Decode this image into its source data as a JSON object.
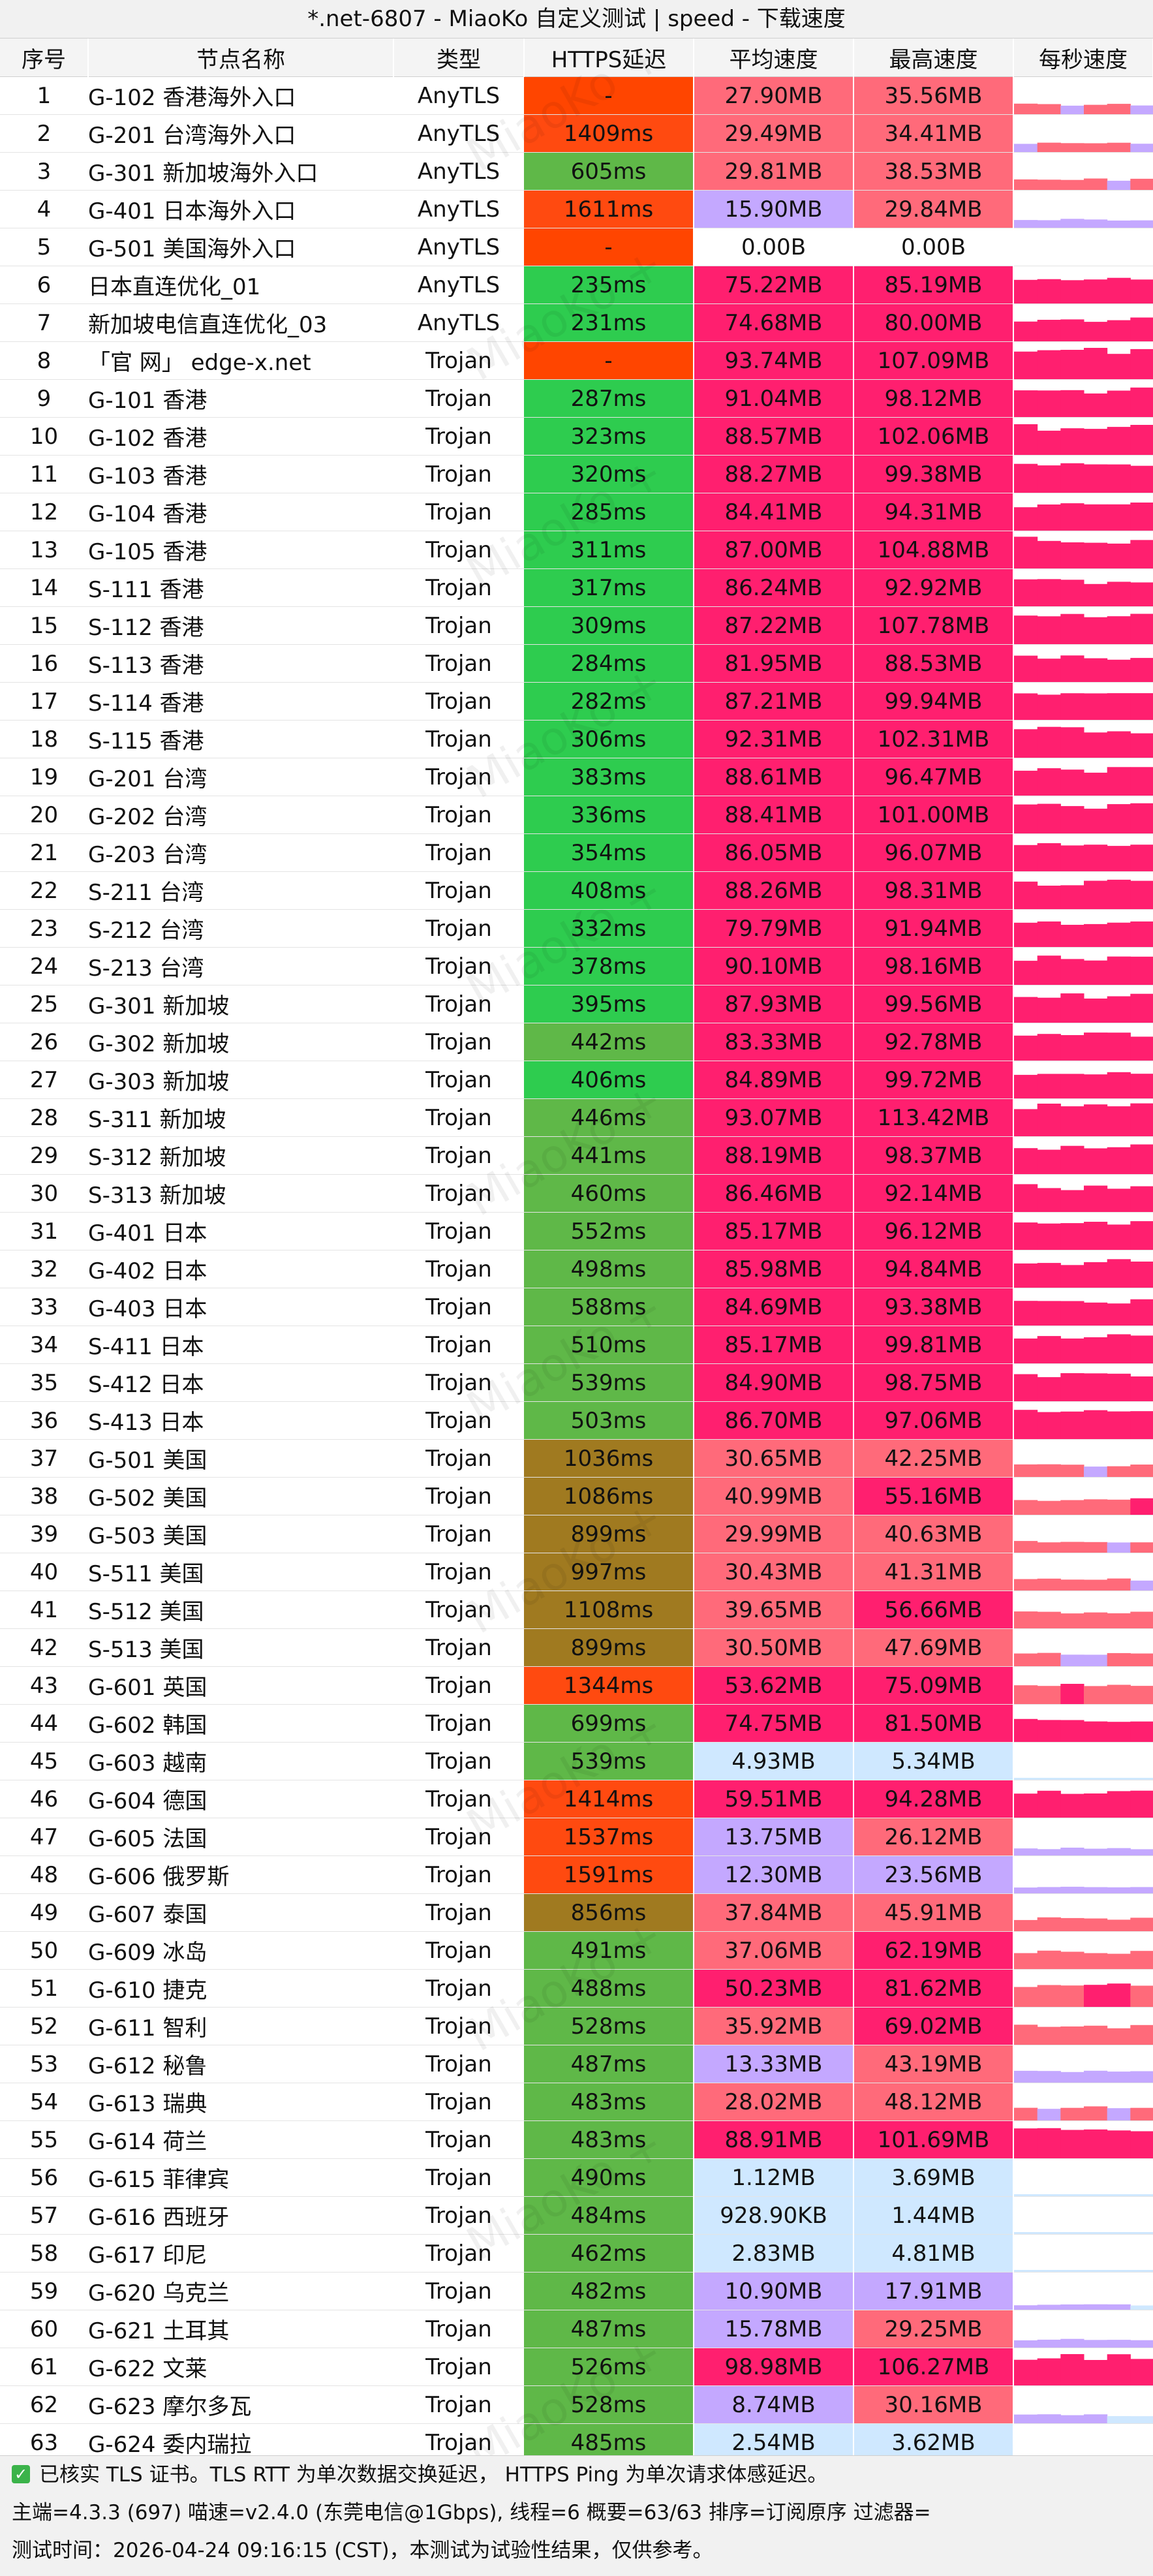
{
  "title": "*.net-6807 - MiaoKo 自定义测试 | speed - 下载速度",
  "watermark": "MiaoKo +",
  "columns": [
    "序号",
    "节点名称",
    "类型",
    "HTTPS延迟",
    "平均速度",
    "最高速度",
    "每秒速度"
  ],
  "rows": [
    {
      "i": "1",
      "name": "G-102 香港海外入口",
      "type": "AnyTLS",
      "lat": "-",
      "avg": "27.90MB",
      "max": "35.56MB"
    },
    {
      "i": "2",
      "name": "G-201 台湾海外入口",
      "type": "AnyTLS",
      "lat": "1409ms",
      "avg": "29.49MB",
      "max": "34.41MB"
    },
    {
      "i": "3",
      "name": "G-301 新加坡海外入口",
      "type": "AnyTLS",
      "lat": "605ms",
      "avg": "29.81MB",
      "max": "38.53MB"
    },
    {
      "i": "4",
      "name": "G-401 日本海外入口",
      "type": "AnyTLS",
      "lat": "1611ms",
      "avg": "15.90MB",
      "max": "29.84MB"
    },
    {
      "i": "5",
      "name": "G-501 美国海外入口",
      "type": "AnyTLS",
      "lat": "-",
      "avg": "0.00B",
      "max": "0.00B"
    },
    {
      "i": "6",
      "name": "日本直连优化_01",
      "type": "AnyTLS",
      "lat": "235ms",
      "avg": "75.22MB",
      "max": "85.19MB"
    },
    {
      "i": "7",
      "name": "新加坡电信直连优化_03",
      "type": "AnyTLS",
      "lat": "231ms",
      "avg": "74.68MB",
      "max": "80.00MB"
    },
    {
      "i": "8",
      "name": "「官 网」 edge-x.net",
      "type": "Trojan",
      "lat": "-",
      "avg": "93.74MB",
      "max": "107.09MB"
    },
    {
      "i": "9",
      "name": "G-101 香港",
      "type": "Trojan",
      "lat": "287ms",
      "avg": "91.04MB",
      "max": "98.12MB"
    },
    {
      "i": "10",
      "name": "G-102 香港",
      "type": "Trojan",
      "lat": "323ms",
      "avg": "88.57MB",
      "max": "102.06MB"
    },
    {
      "i": "11",
      "name": "G-103 香港",
      "type": "Trojan",
      "lat": "320ms",
      "avg": "88.27MB",
      "max": "99.38MB"
    },
    {
      "i": "12",
      "name": "G-104 香港",
      "type": "Trojan",
      "lat": "285ms",
      "avg": "84.41MB",
      "max": "94.31MB"
    },
    {
      "i": "13",
      "name": "G-105 香港",
      "type": "Trojan",
      "lat": "311ms",
      "avg": "87.00MB",
      "max": "104.88MB"
    },
    {
      "i": "14",
      "name": "S-111 香港",
      "type": "Trojan",
      "lat": "317ms",
      "avg": "86.24MB",
      "max": "92.92MB"
    },
    {
      "i": "15",
      "name": "S-112 香港",
      "type": "Trojan",
      "lat": "309ms",
      "avg": "87.22MB",
      "max": "107.78MB"
    },
    {
      "i": "16",
      "name": "S-113 香港",
      "type": "Trojan",
      "lat": "284ms",
      "avg": "81.95MB",
      "max": "88.53MB"
    },
    {
      "i": "17",
      "name": "S-114 香港",
      "type": "Trojan",
      "lat": "282ms",
      "avg": "87.21MB",
      "max": "99.94MB"
    },
    {
      "i": "18",
      "name": "S-115 香港",
      "type": "Trojan",
      "lat": "306ms",
      "avg": "92.31MB",
      "max": "102.31MB"
    },
    {
      "i": "19",
      "name": "G-201 台湾",
      "type": "Trojan",
      "lat": "383ms",
      "avg": "88.61MB",
      "max": "96.47MB"
    },
    {
      "i": "20",
      "name": "G-202 台湾",
      "type": "Trojan",
      "lat": "336ms",
      "avg": "88.41MB",
      "max": "101.00MB"
    },
    {
      "i": "21",
      "name": "G-203 台湾",
      "type": "Trojan",
      "lat": "354ms",
      "avg": "86.05MB",
      "max": "96.07MB"
    },
    {
      "i": "22",
      "name": "S-211 台湾",
      "type": "Trojan",
      "lat": "408ms",
      "avg": "88.26MB",
      "max": "98.31MB"
    },
    {
      "i": "23",
      "name": "S-212 台湾",
      "type": "Trojan",
      "lat": "332ms",
      "avg": "79.79MB",
      "max": "91.94MB"
    },
    {
      "i": "24",
      "name": "S-213 台湾",
      "type": "Trojan",
      "lat": "378ms",
      "avg": "90.10MB",
      "max": "98.16MB"
    },
    {
      "i": "25",
      "name": "G-301 新加坡",
      "type": "Trojan",
      "lat": "395ms",
      "avg": "87.93MB",
      "max": "99.56MB"
    },
    {
      "i": "26",
      "name": "G-302 新加坡",
      "type": "Trojan",
      "lat": "442ms",
      "avg": "83.33MB",
      "max": "92.78MB"
    },
    {
      "i": "27",
      "name": "G-303 新加坡",
      "type": "Trojan",
      "lat": "406ms",
      "avg": "84.89MB",
      "max": "99.72MB"
    },
    {
      "i": "28",
      "name": "S-311 新加坡",
      "type": "Trojan",
      "lat": "446ms",
      "avg": "93.07MB",
      "max": "113.42MB"
    },
    {
      "i": "29",
      "name": "S-312 新加坡",
      "type": "Trojan",
      "lat": "441ms",
      "avg": "88.19MB",
      "max": "98.37MB"
    },
    {
      "i": "30",
      "name": "S-313 新加坡",
      "type": "Trojan",
      "lat": "460ms",
      "avg": "86.46MB",
      "max": "92.14MB"
    },
    {
      "i": "31",
      "name": "G-401 日本",
      "type": "Trojan",
      "lat": "552ms",
      "avg": "85.17MB",
      "max": "96.12MB"
    },
    {
      "i": "32",
      "name": "G-402 日本",
      "type": "Trojan",
      "lat": "498ms",
      "avg": "85.98MB",
      "max": "94.84MB"
    },
    {
      "i": "33",
      "name": "G-403 日本",
      "type": "Trojan",
      "lat": "588ms",
      "avg": "84.69MB",
      "max": "93.38MB"
    },
    {
      "i": "34",
      "name": "S-411 日本",
      "type": "Trojan",
      "lat": "510ms",
      "avg": "85.17MB",
      "max": "99.81MB"
    },
    {
      "i": "35",
      "name": "S-412 日本",
      "type": "Trojan",
      "lat": "539ms",
      "avg": "84.90MB",
      "max": "98.75MB"
    },
    {
      "i": "36",
      "name": "S-413 日本",
      "type": "Trojan",
      "lat": "503ms",
      "avg": "86.70MB",
      "max": "97.06MB"
    },
    {
      "i": "37",
      "name": "G-501 美国",
      "type": "Trojan",
      "lat": "1036ms",
      "avg": "30.65MB",
      "max": "42.25MB"
    },
    {
      "i": "38",
      "name": "G-502 美国",
      "type": "Trojan",
      "lat": "1086ms",
      "avg": "40.99MB",
      "max": "55.16MB"
    },
    {
      "i": "39",
      "name": "G-503 美国",
      "type": "Trojan",
      "lat": "899ms",
      "avg": "29.99MB",
      "max": "40.63MB"
    },
    {
      "i": "40",
      "name": "S-511 美国",
      "type": "Trojan",
      "lat": "997ms",
      "avg": "30.43MB",
      "max": "41.31MB"
    },
    {
      "i": "41",
      "name": "S-512 美国",
      "type": "Trojan",
      "lat": "1108ms",
      "avg": "39.65MB",
      "max": "56.66MB"
    },
    {
      "i": "42",
      "name": "S-513 美国",
      "type": "Trojan",
      "lat": "899ms",
      "avg": "30.50MB",
      "max": "47.69MB"
    },
    {
      "i": "43",
      "name": "G-601 英国",
      "type": "Trojan",
      "lat": "1344ms",
      "avg": "53.62MB",
      "max": "75.09MB"
    },
    {
      "i": "44",
      "name": "G-602 韩国",
      "type": "Trojan",
      "lat": "699ms",
      "avg": "74.75MB",
      "max": "81.50MB"
    },
    {
      "i": "45",
      "name": "G-603 越南",
      "type": "Trojan",
      "lat": "539ms",
      "avg": "4.93MB",
      "max": "5.34MB"
    },
    {
      "i": "46",
      "name": "G-604 德国",
      "type": "Trojan",
      "lat": "1414ms",
      "avg": "59.51MB",
      "max": "94.28MB"
    },
    {
      "i": "47",
      "name": "G-605 法国",
      "type": "Trojan",
      "lat": "1537ms",
      "avg": "13.75MB",
      "max": "26.12MB"
    },
    {
      "i": "48",
      "name": "G-606 俄罗斯",
      "type": "Trojan",
      "lat": "1591ms",
      "avg": "12.30MB",
      "max": "23.56MB"
    },
    {
      "i": "49",
      "name": "G-607 泰国",
      "type": "Trojan",
      "lat": "856ms",
      "avg": "37.84MB",
      "max": "45.91MB"
    },
    {
      "i": "50",
      "name": "G-609 冰岛",
      "type": "Trojan",
      "lat": "491ms",
      "avg": "37.06MB",
      "max": "62.19MB"
    },
    {
      "i": "51",
      "name": "G-610 捷克",
      "type": "Trojan",
      "lat": "488ms",
      "avg": "50.23MB",
      "max": "81.62MB"
    },
    {
      "i": "52",
      "name": "G-611 智利",
      "type": "Trojan",
      "lat": "528ms",
      "avg": "35.92MB",
      "max": "69.02MB"
    },
    {
      "i": "53",
      "name": "G-612 秘鲁",
      "type": "Trojan",
      "lat": "487ms",
      "avg": "13.33MB",
      "max": "43.19MB"
    },
    {
      "i": "54",
      "name": "G-613 瑞典",
      "type": "Trojan",
      "lat": "483ms",
      "avg": "28.02MB",
      "max": "48.12MB"
    },
    {
      "i": "55",
      "name": "G-614 荷兰",
      "type": "Trojan",
      "lat": "483ms",
      "avg": "88.91MB",
      "max": "101.69MB"
    },
    {
      "i": "56",
      "name": "G-615 菲律宾",
      "type": "Trojan",
      "lat": "490ms",
      "avg": "1.12MB",
      "max": "3.69MB"
    },
    {
      "i": "57",
      "name": "G-616 西班牙",
      "type": "Trojan",
      "lat": "484ms",
      "avg": "928.90KB",
      "max": "1.44MB"
    },
    {
      "i": "58",
      "name": "G-617 印尼",
      "type": "Trojan",
      "lat": "462ms",
      "avg": "2.83MB",
      "max": "4.81MB"
    },
    {
      "i": "59",
      "name": "G-620 乌克兰",
      "type": "Trojan",
      "lat": "482ms",
      "avg": "10.90MB",
      "max": "17.91MB"
    },
    {
      "i": "60",
      "name": "G-621 土耳其",
      "type": "Trojan",
      "lat": "487ms",
      "avg": "15.78MB",
      "max": "29.25MB"
    },
    {
      "i": "61",
      "name": "G-622 文莱",
      "type": "Trojan",
      "lat": "526ms",
      "avg": "98.98MB",
      "max": "106.27MB"
    },
    {
      "i": "62",
      "name": "G-623 摩尔多瓦",
      "type": "Trojan",
      "lat": "528ms",
      "avg": "8.74MB",
      "max": "30.16MB"
    },
    {
      "i": "63",
      "name": "G-624 委内瑞拉",
      "type": "Trojan",
      "lat": "485ms",
      "avg": "2.54MB",
      "max": "3.62MB"
    }
  ],
  "footer": {
    "line1": "已核实 TLS 证书。TLS RTT 为单次数据交换延迟， HTTPS Ping 为单次请求体感延迟。",
    "line2": "主端=4.3.3 (697) 喵速=v2.4.0 (东莞电信@1Gbps), 线程=6 概要=63/63 排序=订阅原序 过滤器=",
    "line3": "测试时间：2026-04-24 09:16:15 (CST)，本测试为试验性结果，仅供参考。"
  },
  "colors": {
    "lat_dash": "#ff4500",
    "lat_fast": "#2ecc4f",
    "lat_mid": "#5fb848",
    "lat_slow": "#a07a20",
    "lat_bad": "#ff4a10",
    "speed_high": "#ff1f6f",
    "speed_mid": "#ff6a7a",
    "speed_low": "#c4a8ff",
    "speed_tiny": "#cfe8ff",
    "speed_zero": "#ffffff",
    "spark": "#ff1f6f"
  }
}
